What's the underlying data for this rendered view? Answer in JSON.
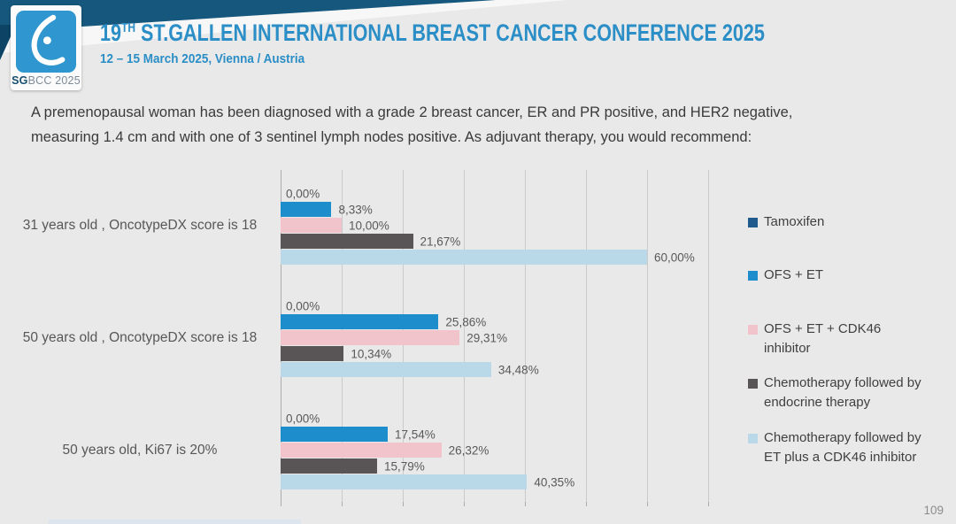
{
  "header": {
    "title_num": "19",
    "title_sup": "TH",
    "title_rest": " ST.GALLEN INTERNATIONAL BREAST CANCER CONFERENCE 2025",
    "subtitle": "12 – 15 March 2025, Vienna / Austria",
    "logo": {
      "sg": "SG",
      "bcc_year": "BCC 2025"
    },
    "accent_blue": "#2B8EC6",
    "band_teal": "#16587D"
  },
  "question": "A premenopausal woman has been diagnosed with a grade 2 breast cancer, ER and PR positive, and HER2 negative, measuring 1.4 cm and with one of 3 sentinel lymph nodes positive. As adjuvant therapy, you would recommend:",
  "chart_data": {
    "type": "bar",
    "orientation": "horizontal",
    "title": "",
    "xlabel": "",
    "ylabel": "",
    "xlim": [
      0,
      70
    ],
    "gridline_step": 10,
    "grid": true,
    "legend_position": "right",
    "value_label_format": "comma-decimal percent",
    "categories": [
      "31 years old , OncotypeDX score is 18",
      "50 years old , OncotypeDX score is 18",
      "50 years old, Ki67 is 20%"
    ],
    "series": [
      {
        "name": "Tamoxifen",
        "color": "#20598B",
        "values": [
          0.0,
          0.0,
          0.0
        ],
        "labels": [
          "0,00%",
          "0,00%",
          "0,00%"
        ]
      },
      {
        "name": "OFS + ET",
        "color": "#1D8DCC",
        "values": [
          8.33,
          25.86,
          17.54
        ],
        "labels": [
          "8,33%",
          "25,86%",
          "17,54%"
        ]
      },
      {
        "name": "OFS + ET + CDK46 inhibitor",
        "color": "#F0C4CA",
        "values": [
          10.0,
          29.31,
          26.32
        ],
        "labels": [
          "10,00%",
          "29,31%",
          "26,32%"
        ]
      },
      {
        "name": "Chemotherapy followed by endocrine therapy",
        "color": "#595557",
        "values": [
          21.67,
          10.34,
          15.79
        ],
        "labels": [
          "21,67%",
          "10,34%",
          "15,79%"
        ]
      },
      {
        "name": "Chemotherapy followed by ET plus a CDK46 inhibitor",
        "color": "#B9D8E8",
        "values": [
          60.0,
          34.48,
          40.35
        ],
        "labels": [
          "60,00%",
          "34,48%",
          "40,35%"
        ]
      }
    ]
  },
  "page_number": "109"
}
